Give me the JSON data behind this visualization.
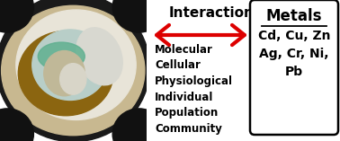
{
  "title": "Interaction",
  "title_fontsize": 11,
  "title_fontweight": "bold",
  "levels_text": "Molecular\nCellular\nPhysiological\nIndividual\nPopulation\nCommunity",
  "levels_fontsize": 8.5,
  "metals_title": "Metals",
  "metals_title_fontsize": 12,
  "metals_body": "Cd, Cu, Zn\nAg, Cr, Ni,\nPb",
  "metals_body_fontsize": 10,
  "arrow_color": "#DD0000",
  "background_color": "#ffffff",
  "oyster_bg": "#1a1a1a",
  "oyster_shell_outer": "#e8e0d0",
  "oyster_shell_brown": "#7a5a20",
  "oyster_inner_white": "#dcdbd5",
  "oyster_teal": "#7abfb0",
  "oyster_center": "#c8c5b8",
  "oyster_highlight": "#e5e3dc"
}
